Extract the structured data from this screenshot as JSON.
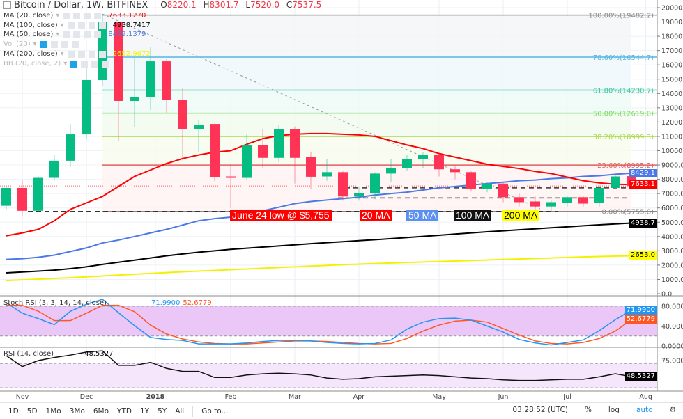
{
  "header": {
    "title": "Bitcoin / Dollar, 1W, BITFINEX",
    "o_label": "O",
    "o": "8220.1",
    "h_label": "H",
    "h": "8301.7",
    "l_label": "L",
    "l": "7520.0",
    "c_label": "C",
    "c": "7537.5"
  },
  "indicators": [
    {
      "label": "MA (20, close)",
      "value": "7633.1270",
      "color": "#ff0000"
    },
    {
      "label": "MA (100, close)",
      "value": "4938.7417",
      "color": "#000000"
    },
    {
      "label": "MA (50, close)",
      "value": "8429.1379",
      "color": "#4a78e6"
    },
    {
      "label": "Vol (20)",
      "value": "",
      "color": "#bbbbbb"
    },
    {
      "label": "MA (200, close)",
      "value": "2652.9672",
      "color": "#f5f500"
    },
    {
      "label": "BB (20, close, 2)",
      "value": "",
      "color": "#bbbbbb"
    }
  ],
  "annotations": [
    {
      "text": "June 24 low @ $5,755",
      "bg": "#ff0000",
      "fg": "#ffffff"
    },
    {
      "text": "20 MA",
      "bg": "#ff0000",
      "fg": "#ffffff"
    },
    {
      "text": "50 MA",
      "bg": "#5b8ff0",
      "fg": "#ffffff"
    },
    {
      "text": "100 MA",
      "bg": "#111111",
      "fg": "#ffffff"
    },
    {
      "text": "200 MA",
      "bg": "#ffff00",
      "fg": "#000000"
    }
  ],
  "price_labels": [
    {
      "text": "8429.1",
      "value": 8429.1,
      "bg": "#4a78e6"
    },
    {
      "text": "7633.1",
      "value": 7633.1,
      "bg": "#ff0000"
    },
    {
      "text": "4938.7",
      "value": 4938.7,
      "bg": "#000000"
    },
    {
      "text": "2653.0",
      "value": 2653.0,
      "bg": "#ffff00",
      "fg": "#000000"
    }
  ],
  "stoch": {
    "label": "Stoch RSI (3, 3, 14, 14, close)",
    "k_value": "71.9900",
    "d_value": "52.6779",
    "k_color": "#2196f3",
    "d_color": "#ff5722",
    "ticks": [
      "80.0000",
      "40.0000",
      "0.0000"
    ]
  },
  "rsi": {
    "label": "RSI (14, close)",
    "value": "48.5327",
    "ticks": [
      "75.0000"
    ]
  },
  "chart_data": {
    "type": "candlestick",
    "price_ticks": [
      "20000.0",
      "19000.0",
      "18000.0",
      "17000.0",
      "16000.0",
      "15000.0",
      "14000.0",
      "13000.0",
      "12000.0",
      "11000.0",
      "10000.0",
      "9000.0",
      "8000.0",
      "7000.0",
      "6000.0",
      "5000.0",
      "4000.0",
      "3000.0",
      "2000.0",
      "1000.0",
      "0.0"
    ],
    "ylim": [
      0,
      20000
    ],
    "time_ticks": [
      "Nov",
      "Dec",
      "2018",
      "Feb",
      "Mar",
      "Apr",
      "May",
      "Jun",
      "Jul",
      "Aug"
    ],
    "candles": [
      [
        6150,
        7500,
        5900,
        7400
      ],
      [
        7400,
        7930,
        5450,
        5800
      ],
      [
        5800,
        8200,
        5700,
        8100
      ],
      [
        8100,
        9700,
        7900,
        9300
      ],
      [
        9300,
        11870,
        8860,
        11140
      ],
      [
        11140,
        16150,
        10800,
        14940
      ],
      [
        14940,
        19500,
        14500,
        18980
      ],
      [
        18980,
        19000,
        10700,
        13480
      ],
      [
        13480,
        16500,
        11680,
        13770
      ],
      [
        13770,
        17270,
        12850,
        16250
      ],
      [
        16250,
        16400,
        12650,
        13570
      ],
      [
        13570,
        14350,
        9340,
        11530
      ],
      [
        11530,
        12170,
        9930,
        11820
      ],
      [
        11870,
        11900,
        7880,
        8170
      ],
      [
        8200,
        9100,
        6000,
        8100
      ],
      [
        8100,
        11200,
        8000,
        10400
      ],
      [
        10400,
        11500,
        8800,
        9500
      ],
      [
        9500,
        11800,
        9200,
        11500
      ],
      [
        11500,
        11700,
        7700,
        9500
      ],
      [
        9540,
        9900,
        7300,
        8180
      ],
      [
        8200,
        9400,
        7900,
        8500
      ],
      [
        8500,
        8600,
        6500,
        6800
      ],
      [
        6800,
        7500,
        6500,
        7050
      ],
      [
        7000,
        8500,
        6600,
        8400
      ],
      [
        8400,
        9400,
        7800,
        8800
      ],
      [
        8800,
        9700,
        8600,
        9400
      ],
      [
        9400,
        9900,
        8800,
        9700
      ],
      [
        9700,
        9800,
        8200,
        8700
      ],
      [
        8700,
        9000,
        8000,
        8500
      ],
      [
        8500,
        8600,
        7200,
        7350
      ],
      [
        7350,
        7800,
        7100,
        7700
      ],
      [
        7700,
        7750,
        6400,
        6750
      ],
      [
        6750,
        7000,
        6100,
        6400
      ],
      [
        6450,
        6800,
        5755,
        6100
      ],
      [
        6100,
        6500,
        5800,
        6400
      ],
      [
        6350,
        6800,
        6100,
        6750
      ],
      [
        6750,
        6850,
        6100,
        6300
      ],
      [
        6350,
        7600,
        6100,
        7400
      ],
      [
        7400,
        8400,
        7350,
        8200
      ],
      [
        8220.1,
        8301.7,
        7520.0,
        7537.5
      ]
    ],
    "ma20": [
      4050,
      4250,
      4500,
      5100,
      5900,
      6350,
      6800,
      7500,
      8200,
      8650,
      9100,
      9450,
      9700,
      9900,
      10000,
      10450,
      10850,
      11050,
      11150,
      11200,
      11200,
      11150,
      11100,
      11000,
      10700,
      10400,
      10150,
      9800,
      9550,
      9300,
      9050,
      8900,
      8750,
      8550,
      8400,
      8150,
      7900,
      7750,
      7650,
      7633
    ],
    "ma50": [
      2400,
      2450,
      2550,
      2700,
      2950,
      3200,
      3550,
      3750,
      4000,
      4250,
      4500,
      4800,
      5100,
      5250,
      5350,
      5550,
      5800,
      6050,
      6300,
      6450,
      6550,
      6650,
      6750,
      6900,
      7000,
      7100,
      7250,
      7400,
      7500,
      7600,
      7700,
      7800,
      7900,
      7950,
      8050,
      8100,
      8200,
      8250,
      8350,
      8429
    ],
    "ma100": [
      1460,
      1520,
      1580,
      1650,
      1750,
      1880,
      2050,
      2200,
      2350,
      2500,
      2650,
      2780,
      2900,
      3000,
      3100,
      3180,
      3260,
      3340,
      3420,
      3500,
      3570,
      3640,
      3710,
      3780,
      3850,
      3930,
      4010,
      4090,
      4170,
      4250,
      4330,
      4400,
      4470,
      4540,
      4610,
      4680,
      4750,
      4820,
      4880,
      4939
    ],
    "ma200": [
      920,
      970,
      1020,
      1070,
      1120,
      1180,
      1240,
      1300,
      1360,
      1420,
      1480,
      1530,
      1580,
      1630,
      1680,
      1730,
      1780,
      1830,
      1880,
      1930,
      1980,
      2030,
      2070,
      2110,
      2150,
      2185,
      2220,
      2255,
      2290,
      2325,
      2360,
      2395,
      2430,
      2465,
      2500,
      2535,
      2570,
      2605,
      2630,
      2653
    ],
    "fib": [
      {
        "label": "100.00%(19482.2)",
        "value": 19482.2,
        "color": "#888888"
      },
      {
        "label": "78.60%(16544.7)",
        "value": 16544.7,
        "color": "#56b6e0"
      },
      {
        "label": "61.80%(14230.7)",
        "value": 14230.7,
        "color": "#3cc8a0"
      },
      {
        "label": "50.00%(12619.0)",
        "value": 12619.0,
        "color": "#7fdc6a"
      },
      {
        "label": "38.20%(10999.3)",
        "value": 10999.3,
        "color": "#a8d84a"
      },
      {
        "label": "23.60%(8995.2)",
        "value": 8995.2,
        "color": "#e06060"
      },
      {
        "label": "0.00%(5755.8)",
        "value": 5755.8,
        "color": "#888888"
      }
    ],
    "support_levels": [
      5755,
      6700,
      7400
    ],
    "stoch_k": [
      87,
      66,
      55,
      43,
      70,
      84,
      94,
      67,
      41,
      17,
      13,
      11,
      4,
      4,
      4,
      6,
      9,
      11,
      11,
      10,
      7,
      5,
      4,
      5,
      12,
      34,
      48,
      55,
      56,
      52,
      40,
      28,
      13,
      6,
      2,
      7,
      12,
      31,
      53,
      71.99
    ],
    "stoch_d": [
      82,
      82,
      70,
      51,
      51,
      66,
      82,
      82,
      69,
      42,
      24,
      14,
      8,
      5,
      4,
      4,
      6,
      8,
      10,
      10,
      9,
      7,
      5,
      4,
      5,
      15,
      30,
      42,
      50,
      52,
      48,
      35,
      22,
      10,
      5,
      4,
      7,
      15,
      30,
      52.68
    ],
    "rsi": [
      83,
      65,
      75,
      80,
      84,
      89,
      91,
      67,
      67,
      72,
      62,
      57,
      57,
      47,
      47,
      51,
      53,
      54,
      53,
      51,
      46,
      44,
      45,
      48,
      49,
      50,
      51,
      50,
      48,
      46,
      45,
      43,
      42,
      42,
      43,
      44,
      44,
      48,
      53,
      48.53
    ],
    "up_color": "#05bd82",
    "down_color": "#ff3355"
  },
  "footer": {
    "ranges": [
      "1D",
      "5D",
      "1Mo",
      "3Mo",
      "6Mo",
      "YTD",
      "1Y",
      "5Y",
      "All"
    ],
    "goto": "Go to...",
    "time": "03:28:52 (UTC)",
    "percent": "%",
    "log": "log",
    "auto": "auto"
  }
}
